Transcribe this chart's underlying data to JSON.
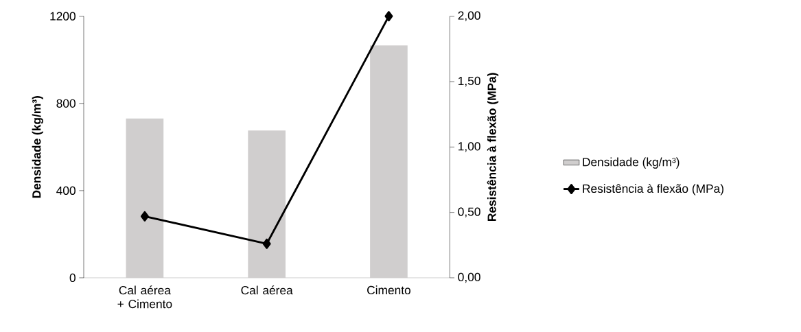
{
  "chart_data": {
    "type": "bar",
    "categories": [
      "Cal aérea + Cimento",
      "Cal aérea",
      "Cimento"
    ],
    "series": [
      {
        "name": "Densidade (kg/m³)",
        "color": "#d0cece",
        "values": [
          731,
          676,
          1066
        ]
      },
      {
        "name": "Resistência à flexão (MPa)",
        "type": "line",
        "axis": "y2",
        "color": "#000000",
        "marker": "diamond",
        "values": [
          0.47,
          0.26,
          2.0
        ]
      }
    ],
    "ylabel": "Densidade (kg/m³)",
    "y2label": "Resistência à flexão (MPa)",
    "ylim": [
      0,
      1200
    ],
    "yticks": [
      0,
      400,
      800,
      1200
    ],
    "y2lim": [
      0,
      2
    ],
    "y2ticks": [
      {
        "value": 0,
        "label": "0,00"
      },
      {
        "value": 0.5,
        "label": "0,50"
      },
      {
        "value": 1,
        "label": "1,00"
      },
      {
        "value": 1.5,
        "label": "1,50"
      },
      {
        "value": 2,
        "label": "2,00"
      }
    ],
    "legend": "right"
  }
}
